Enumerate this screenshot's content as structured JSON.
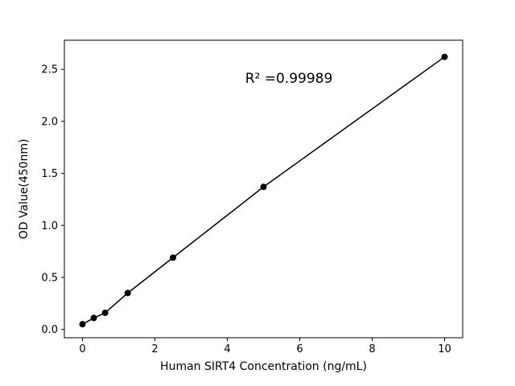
{
  "figure": {
    "background": "#ffffff",
    "axis_color": "#000000"
  },
  "chart_data": {
    "type": "scatter",
    "title": "",
    "xlabel": "Human SIRT4 Concentration (ng/mL)",
    "ylabel": "OD Value(450nm)",
    "x": [
      0,
      0.3125,
      0.625,
      1.25,
      2.5,
      5,
      10
    ],
    "y": [
      0.05,
      0.11,
      0.16,
      0.35,
      0.69,
      1.37,
      2.62
    ],
    "line": true,
    "line_color": "#000000",
    "marker": "circle",
    "marker_color": "#000000",
    "marker_radius": 4,
    "xlim": [
      -0.5,
      10.5
    ],
    "ylim": [
      -0.08,
      2.78
    ],
    "xticks": [
      0,
      2,
      4,
      6,
      8,
      10
    ],
    "yticks": [
      0.0,
      0.5,
      1.0,
      1.5,
      2.0,
      2.5
    ],
    "grid": false,
    "legend": null,
    "annotation": {
      "text": "R² =0.99989",
      "x": 5.7,
      "y": 2.37
    }
  }
}
